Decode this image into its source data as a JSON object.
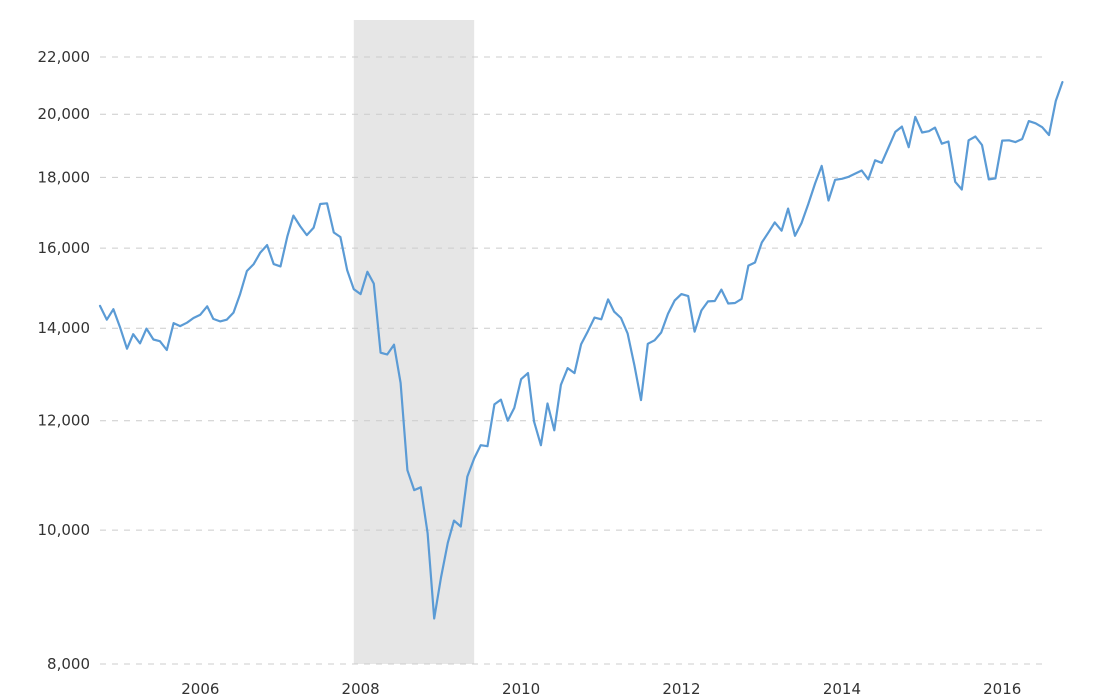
{
  "chart_data": {
    "type": "line",
    "title": "",
    "xlabel": "",
    "ylabel": "",
    "y_scale": "log",
    "ylim": [
      8000,
      23400
    ],
    "xlim": [
      "2004-10-01",
      "2016-08-01"
    ],
    "grid": true,
    "y_ticks": [
      {
        "value": 8000,
        "label": "8,000"
      },
      {
        "value": 10000,
        "label": "10,000"
      },
      {
        "value": 12000,
        "label": "12,000"
      },
      {
        "value": 14000,
        "label": "14,000"
      },
      {
        "value": 16000,
        "label": "16,000"
      },
      {
        "value": 18000,
        "label": "18,000"
      },
      {
        "value": 20000,
        "label": "20,000"
      },
      {
        "value": 22000,
        "label": "22,000"
      }
    ],
    "x_ticks": [
      {
        "value": "2006-01-01",
        "label": "2006"
      },
      {
        "value": "2008-01-01",
        "label": "2008"
      },
      {
        "value": "2010-01-01",
        "label": "2010"
      },
      {
        "value": "2012-01-01",
        "label": "2012"
      },
      {
        "value": "2014-01-01",
        "label": "2014"
      },
      {
        "value": "2016-01-01",
        "label": "2016"
      }
    ],
    "shaded_regions": [
      {
        "start": "2007-12-01",
        "end": "2009-06-01",
        "color": "#e6e6e6"
      }
    ],
    "series": [
      {
        "color": "#5b9bd5",
        "points": [
          [
            "2004-10-01",
            14530
          ],
          [
            "2004-11-01",
            14200
          ],
          [
            "2004-12-01",
            14450
          ],
          [
            "2005-01-01",
            14010
          ],
          [
            "2005-02-01",
            13530
          ],
          [
            "2005-03-01",
            13860
          ],
          [
            "2005-04-01",
            13650
          ],
          [
            "2005-05-01",
            13990
          ],
          [
            "2005-06-01",
            13740
          ],
          [
            "2005-07-01",
            13700
          ],
          [
            "2005-08-01",
            13500
          ],
          [
            "2005-09-01",
            14120
          ],
          [
            "2005-10-01",
            14050
          ],
          [
            "2005-11-01",
            14130
          ],
          [
            "2005-12-01",
            14240
          ],
          [
            "2006-01-01",
            14320
          ],
          [
            "2006-02-01",
            14520
          ],
          [
            "2006-03-01",
            14220
          ],
          [
            "2006-04-01",
            14160
          ],
          [
            "2006-05-01",
            14200
          ],
          [
            "2006-06-01",
            14370
          ],
          [
            "2006-07-01",
            14820
          ],
          [
            "2006-08-01",
            15400
          ],
          [
            "2006-09-01",
            15580
          ],
          [
            "2006-10-01",
            15880
          ],
          [
            "2006-11-01",
            16080
          ],
          [
            "2006-12-01",
            15580
          ],
          [
            "2007-01-01",
            15520
          ],
          [
            "2007-02-01",
            16310
          ],
          [
            "2007-03-01",
            16890
          ],
          [
            "2007-04-01",
            16590
          ],
          [
            "2007-05-01",
            16350
          ],
          [
            "2007-06-01",
            16550
          ],
          [
            "2007-07-01",
            17220
          ],
          [
            "2007-08-01",
            17240
          ],
          [
            "2007-09-01",
            16420
          ],
          [
            "2007-10-01",
            16300
          ],
          [
            "2007-11-01",
            15420
          ],
          [
            "2007-12-01",
            14940
          ],
          [
            "2008-01-01",
            14820
          ],
          [
            "2008-02-01",
            15380
          ],
          [
            "2008-03-01",
            15080
          ],
          [
            "2008-04-01",
            13440
          ],
          [
            "2008-05-01",
            13400
          ],
          [
            "2008-06-01",
            13620
          ],
          [
            "2008-07-01",
            12780
          ],
          [
            "2008-08-01",
            11050
          ],
          [
            "2008-09-01",
            10690
          ],
          [
            "2008-10-01",
            10740
          ],
          [
            "2008-11-01",
            9950
          ],
          [
            "2008-12-01",
            8630
          ],
          [
            "2009-01-01",
            9240
          ],
          [
            "2009-02-01",
            9790
          ],
          [
            "2009-03-01",
            10160
          ],
          [
            "2009-04-01",
            10060
          ],
          [
            "2009-05-01",
            10930
          ],
          [
            "2009-06-01",
            11270
          ],
          [
            "2009-07-01",
            11520
          ],
          [
            "2009-08-01",
            11500
          ],
          [
            "2009-09-01",
            12330
          ],
          [
            "2009-10-01",
            12430
          ],
          [
            "2009-11-01",
            12000
          ],
          [
            "2009-12-01",
            12260
          ],
          [
            "2010-01-01",
            12860
          ],
          [
            "2010-02-01",
            12990
          ],
          [
            "2010-03-01",
            11980
          ],
          [
            "2010-04-01",
            11520
          ],
          [
            "2010-05-01",
            12350
          ],
          [
            "2010-06-01",
            11810
          ],
          [
            "2010-07-01",
            12740
          ],
          [
            "2010-08-01",
            13100
          ],
          [
            "2010-09-01",
            12990
          ],
          [
            "2010-10-01",
            13630
          ],
          [
            "2010-11-01",
            13930
          ],
          [
            "2010-12-01",
            14250
          ],
          [
            "2011-01-01",
            14210
          ],
          [
            "2011-02-01",
            14690
          ],
          [
            "2011-03-01",
            14390
          ],
          [
            "2011-04-01",
            14240
          ],
          [
            "2011-05-01",
            13880
          ],
          [
            "2011-06-01",
            13160
          ],
          [
            "2011-07-01",
            12420
          ],
          [
            "2011-08-01",
            13640
          ],
          [
            "2011-09-01",
            13720
          ],
          [
            "2011-10-01",
            13900
          ],
          [
            "2011-11-01",
            14340
          ],
          [
            "2011-12-01",
            14660
          ],
          [
            "2012-01-01",
            14820
          ],
          [
            "2012-02-01",
            14770
          ],
          [
            "2012-03-01",
            13920
          ],
          [
            "2012-04-01",
            14420
          ],
          [
            "2012-05-01",
            14640
          ],
          [
            "2012-06-01",
            14650
          ],
          [
            "2012-07-01",
            14930
          ],
          [
            "2012-08-01",
            14590
          ],
          [
            "2012-09-01",
            14600
          ],
          [
            "2012-10-01",
            14700
          ],
          [
            "2012-11-01",
            15540
          ],
          [
            "2012-12-01",
            15620
          ],
          [
            "2013-01-01",
            16150
          ],
          [
            "2013-02-01",
            16430
          ],
          [
            "2013-03-01",
            16700
          ],
          [
            "2013-04-01",
            16470
          ],
          [
            "2013-05-01",
            17090
          ],
          [
            "2013-06-01",
            16330
          ],
          [
            "2013-07-01",
            16680
          ],
          [
            "2013-08-01",
            17220
          ],
          [
            "2013-09-01",
            17830
          ],
          [
            "2013-10-01",
            18350
          ],
          [
            "2013-11-01",
            17320
          ],
          [
            "2013-12-01",
            17930
          ],
          [
            "2014-01-01",
            17960
          ],
          [
            "2014-02-01",
            18020
          ],
          [
            "2014-03-01",
            18110
          ],
          [
            "2014-04-01",
            18210
          ],
          [
            "2014-05-01",
            17940
          ],
          [
            "2014-06-01",
            18520
          ],
          [
            "2014-07-01",
            18440
          ],
          [
            "2014-08-01",
            18920
          ],
          [
            "2014-09-01",
            19420
          ],
          [
            "2014-10-01",
            19590
          ],
          [
            "2014-11-01",
            18930
          ],
          [
            "2014-12-01",
            19910
          ],
          [
            "2015-01-01",
            19400
          ],
          [
            "2015-02-01",
            19440
          ],
          [
            "2015-03-01",
            19560
          ],
          [
            "2015-04-01",
            19040
          ],
          [
            "2015-05-01",
            19110
          ],
          [
            "2015-06-01",
            17870
          ],
          [
            "2015-07-01",
            17640
          ],
          [
            "2015-08-01",
            19150
          ],
          [
            "2015-09-01",
            19270
          ],
          [
            "2015-10-01",
            19000
          ],
          [
            "2015-11-01",
            17940
          ],
          [
            "2015-12-01",
            17970
          ],
          [
            "2016-01-01",
            19140
          ],
          [
            "2016-02-01",
            19150
          ],
          [
            "2016-03-01",
            19090
          ],
          [
            "2016-04-01",
            19190
          ],
          [
            "2016-05-01",
            19770
          ],
          [
            "2016-06-01",
            19700
          ],
          [
            "2016-07-01",
            19570
          ],
          [
            "2016-08-01",
            19320
          ],
          [
            "2016-09-01",
            20450
          ],
          [
            "2016-10-01",
            21100
          ]
        ]
      }
    ]
  }
}
